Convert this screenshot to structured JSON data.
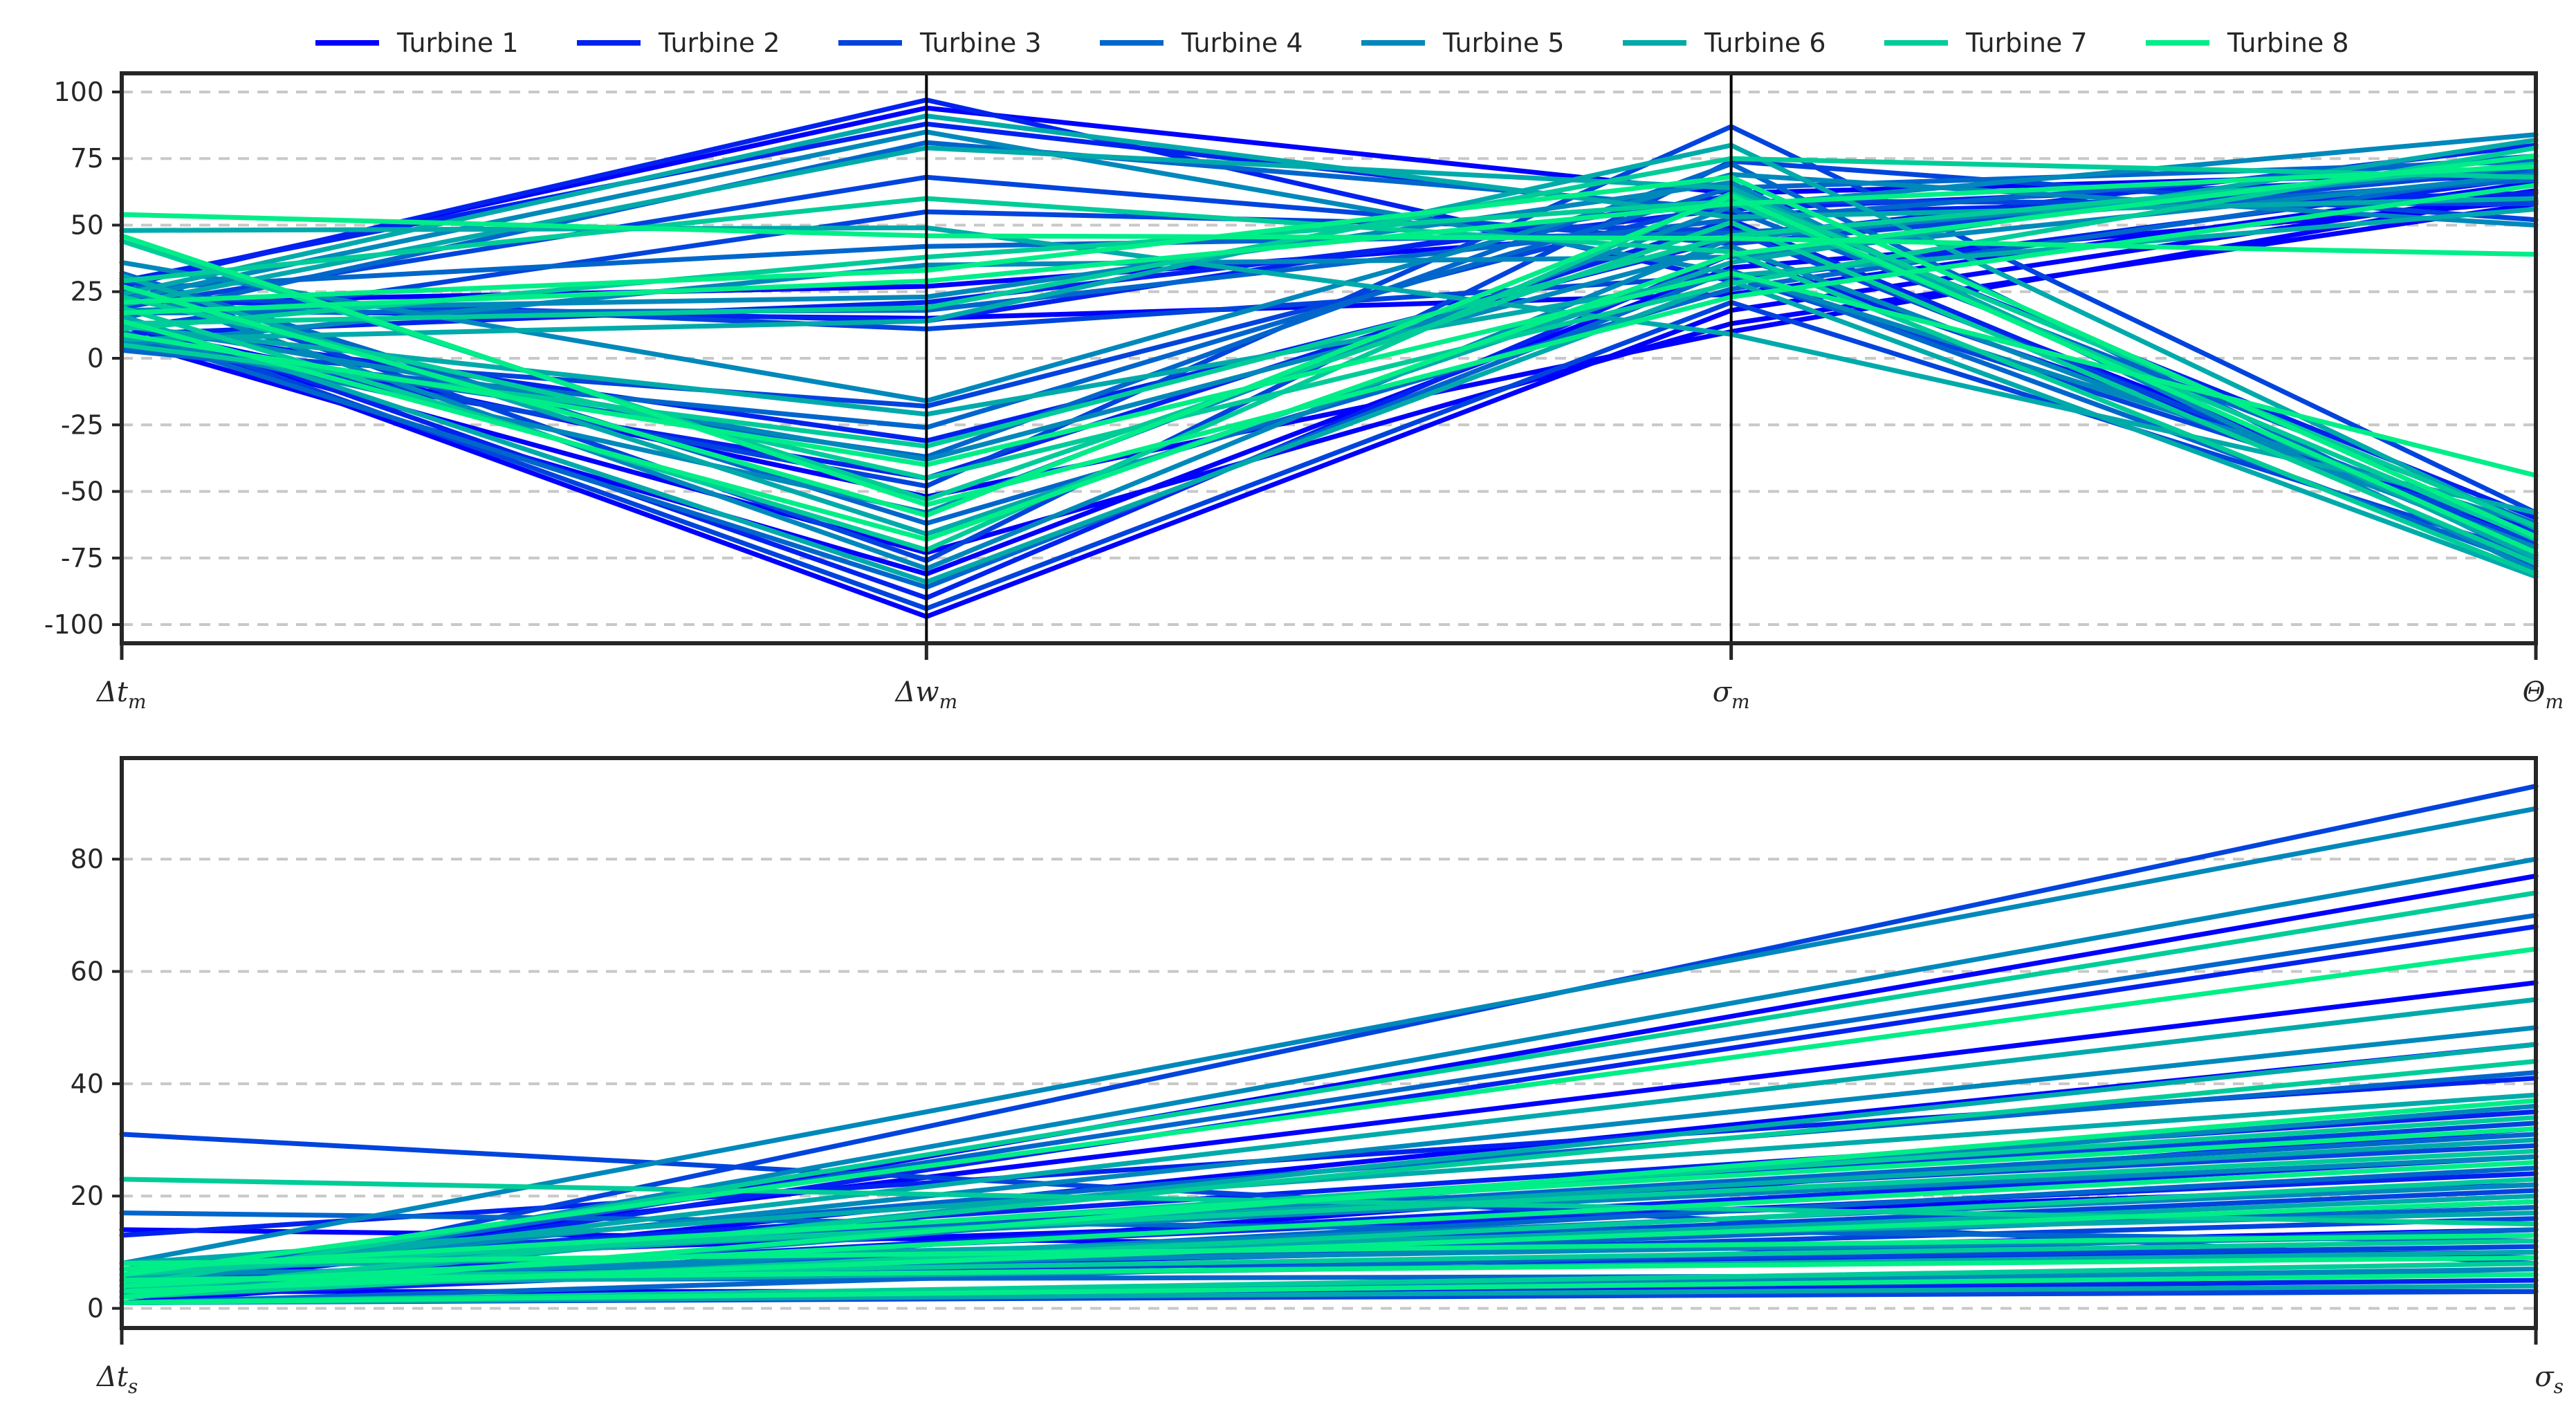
{
  "chart_data": [
    {
      "type": "line",
      "subtype": "parallel-coordinates",
      "title": "",
      "categories": [
        "Δt_m",
        "Δw_m",
        "σ_m",
        "Θ_m"
      ],
      "category_labels": [
        {
          "base": "Δt",
          "sub": "m"
        },
        {
          "base": "Δw",
          "sub": "m"
        },
        {
          "base": "σ",
          "sub": "m"
        },
        {
          "base": "Θ",
          "sub": "m"
        }
      ],
      "ylim": [
        -107,
        107
      ],
      "yticks": [
        100,
        75,
        50,
        25,
        0,
        -25,
        -50,
        -75,
        -100
      ],
      "grid": "horizontal dashed",
      "legend_position": "top",
      "series": [
        {
          "name": "Turbine 1",
          "color": "#0000ff",
          "lines": [
            [
              13,
              -97,
              18,
              63
            ],
            [
              10,
              -73,
              13,
              58
            ],
            [
              28,
              94,
              62,
              70
            ],
            [
              18,
              15,
              24,
              66
            ],
            [
              7,
              -81,
              34,
              59
            ],
            [
              21,
              27,
              49,
              -68
            ],
            [
              12,
              -52,
              10,
              62
            ]
          ]
        },
        {
          "name": "Turbine 2",
          "color": "#0022ee",
          "lines": [
            [
              5,
              -45,
              52,
              -73
            ],
            [
              27,
              97,
              29,
              68
            ],
            [
              16,
              -90,
              39,
              -65
            ],
            [
              9,
              21,
              56,
              69
            ],
            [
              29,
              88,
              54,
              62
            ],
            [
              12,
              -31,
              45,
              80
            ],
            [
              22,
              14,
              61,
              -60
            ]
          ]
        },
        {
          "name": "Turbine 3",
          "color": "#0044dd",
          "lines": [
            [
              8,
              -48,
              87,
              -58
            ],
            [
              19,
              68,
              43,
              71
            ],
            [
              14,
              -94,
              21,
              -74
            ],
            [
              4,
              -18,
              59,
              58
            ],
            [
              24,
              11,
              31,
              -66
            ],
            [
              30,
              -76,
              74,
              52
            ],
            [
              11,
              55,
              48,
              -70
            ]
          ]
        },
        {
          "name": "Turbine 4",
          "color": "#0066cc",
          "lines": [
            [
              6,
              -37,
              73,
              -76
            ],
            [
              17,
              18,
              52,
              76
            ],
            [
              32,
              -62,
              26,
              70
            ],
            [
              10,
              -86,
              33,
              -78
            ],
            [
              26,
              42,
              47,
              67
            ],
            [
              3,
              -26,
              64,
              74
            ],
            [
              15,
              81,
              56,
              -62
            ]
          ]
        },
        {
          "name": "Turbine 5",
          "color": "#0088bb",
          "lines": [
            [
              36,
              -16,
              69,
              50
            ],
            [
              22,
              85,
              32,
              -63
            ],
            [
              13,
              -38,
              42,
              -71
            ],
            [
              9,
              -58,
              57,
              84
            ],
            [
              18,
              23,
              66,
              -80
            ],
            [
              27,
              -79,
              45,
              72
            ],
            [
              5,
              35,
              38,
              69
            ]
          ]
        },
        {
          "name": "Turbine 6",
          "color": "#00aaaa",
          "lines": [
            [
              20,
              79,
              64,
              -75
            ],
            [
              12,
              -21,
              31,
              56
            ],
            [
              31,
              -66,
              36,
              82
            ],
            [
              7,
              14,
              80,
              -64
            ],
            [
              48,
              49,
              9,
              -58
            ],
            [
              16,
              -84,
              29,
              -82
            ],
            [
              24,
              91,
              53,
              60
            ]
          ]
        },
        {
          "name": "Turbine 7",
          "color": "#00cc99",
          "lines": [
            [
              44,
              -53,
              51,
              -77
            ],
            [
              11,
              38,
              59,
              -68
            ],
            [
              5,
              -33,
              46,
              73
            ],
            [
              19,
              -72,
              62,
              -63
            ],
            [
              29,
              60,
              40,
              -81
            ],
            [
              13,
              19,
              75,
              68
            ],
            [
              23,
              -45,
              28,
              79
            ]
          ]
        },
        {
          "name": "Turbine 8",
          "color": "#00ee88",
          "lines": [
            [
              54,
              46,
              45,
              39
            ],
            [
              9,
              -40,
              32,
              -44
            ],
            [
              17,
              29,
              58,
              72
            ],
            [
              46,
              -55,
              23,
              65
            ],
            [
              21,
              33,
              68,
              -67
            ],
            [
              14,
              -68,
              39,
              76
            ],
            [
              27,
              -59,
              61,
              -73
            ]
          ]
        }
      ]
    },
    {
      "type": "line",
      "subtype": "parallel-coordinates",
      "title": "",
      "categories": [
        "Δt_s",
        "σ_s"
      ],
      "category_labels": [
        {
          "base": "Δt",
          "sub": "s"
        },
        {
          "base": "σ",
          "sub": "s"
        }
      ],
      "ylim": [
        -3.5,
        98
      ],
      "yticks": [
        80,
        60,
        40,
        20,
        0
      ],
      "grid": "horizontal dashed",
      "series": [
        {
          "name": "Turbine 1",
          "color": "#0000ff",
          "lines": [
            [
              14,
              9
            ],
            [
              2,
              77
            ],
            [
              6,
              58
            ],
            [
              4,
              47
            ],
            [
              1,
              32
            ],
            [
              3,
              3
            ],
            [
              8,
              22
            ],
            [
              5,
              14
            ]
          ]
        },
        {
          "name": "Turbine 2",
          "color": "#0022ee",
          "lines": [
            [
              13,
              41
            ],
            [
              3,
              68
            ],
            [
              7,
              35
            ],
            [
              1,
              5
            ],
            [
              4,
              27
            ],
            [
              2,
              19
            ],
            [
              6,
              10
            ],
            [
              5,
              24
            ]
          ]
        },
        {
          "name": "Turbine 3",
          "color": "#0044dd",
          "lines": [
            [
              31,
              8
            ],
            [
              2,
              93
            ],
            [
              6,
              33
            ],
            [
              3,
              21
            ],
            [
              5,
              11
            ],
            [
              4,
              16
            ],
            [
              1,
              3
            ],
            [
              8,
              29
            ]
          ]
        },
        {
          "name": "Turbine 4",
          "color": "#0066cc",
          "lines": [
            [
              17,
              12
            ],
            [
              4,
              70
            ],
            [
              7,
              42
            ],
            [
              2,
              25
            ],
            [
              3,
              18
            ],
            [
              5,
              6
            ],
            [
              6,
              31
            ],
            [
              1,
              14
            ]
          ]
        },
        {
          "name": "Turbine 5",
          "color": "#0088bb",
          "lines": [
            [
              8,
              89
            ],
            [
              3,
              80
            ],
            [
              5,
              50
            ],
            [
              2,
              36
            ],
            [
              4,
              22
            ],
            [
              6,
              13
            ],
            [
              1,
              7
            ],
            [
              7,
              27
            ]
          ]
        },
        {
          "name": "Turbine 6",
          "color": "#00aaaa",
          "lines": [
            [
              5,
              55
            ],
            [
              2,
              47
            ],
            [
              6,
              30
            ],
            [
              3,
              20
            ],
            [
              4,
              10
            ],
            [
              7,
              17
            ],
            [
              1,
              4
            ],
            [
              8,
              38
            ]
          ]
        },
        {
          "name": "Turbine 7",
          "color": "#00cc99",
          "lines": [
            [
              23,
              15
            ],
            [
              4,
              74
            ],
            [
              3,
              44
            ],
            [
              6,
              34
            ],
            [
              2,
              23
            ],
            [
              5,
              12
            ],
            [
              1,
              8
            ],
            [
              7,
              28
            ]
          ]
        },
        {
          "name": "Turbine 8",
          "color": "#00ee88",
          "lines": [
            [
              6,
              64
            ],
            [
              2,
              37
            ],
            [
              4,
              26
            ],
            [
              3,
              19
            ],
            [
              5,
              9
            ],
            [
              1,
              6
            ],
            [
              7,
              32
            ],
            [
              8,
              13
            ]
          ]
        }
      ]
    }
  ]
}
